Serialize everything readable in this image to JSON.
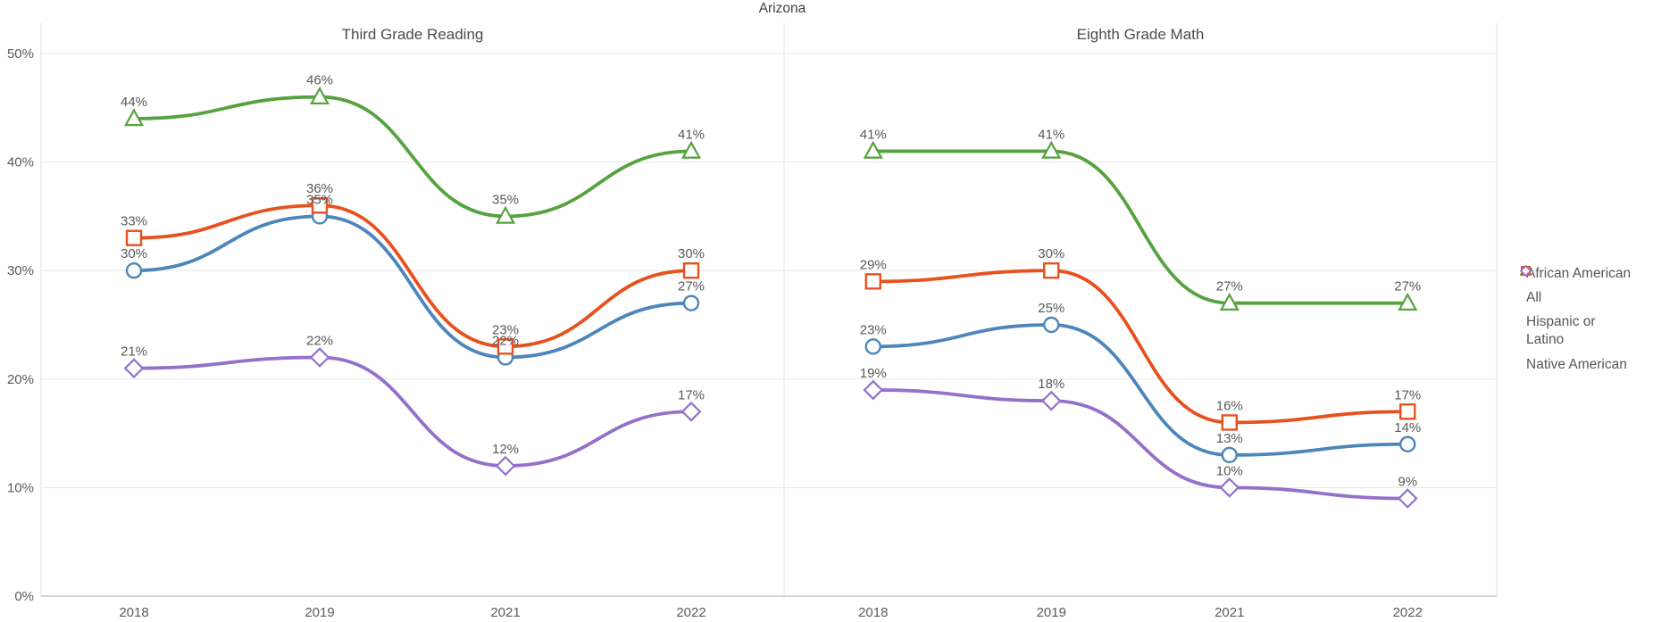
{
  "chart_data": {
    "type": "line",
    "title": "Arizona",
    "ylim": [
      0,
      50
    ],
    "yticks": [
      "0%",
      "10%",
      "20%",
      "30%",
      "40%",
      "50%"
    ],
    "grid": true,
    "legend_position": "right",
    "colors": {
      "african_american": "#4d86bb",
      "all": "#56a240",
      "hispanic_or_latino": "#e7511e",
      "native_american": "#9470ca",
      "gridline": "#e7e7e7",
      "axis_line": "#c6c6c6",
      "text": "#595959"
    },
    "panels": [
      {
        "title": "Third Grade Reading",
        "categories": [
          "2018",
          "2019",
          "2021",
          "2022"
        ],
        "series": [
          {
            "name": "African American",
            "marker": "circle",
            "color": "#4d86bb",
            "values": [
              30,
              35,
              22,
              27
            ]
          },
          {
            "name": "All",
            "marker": "triangle",
            "color": "#56a240",
            "values": [
              44,
              46,
              35,
              41
            ]
          },
          {
            "name": "Hispanic or Latino",
            "marker": "square",
            "color": "#e7511e",
            "values": [
              33,
              36,
              23,
              30
            ]
          },
          {
            "name": "Native American",
            "marker": "diamond",
            "color": "#9470ca",
            "values": [
              21,
              22,
              12,
              17
            ]
          }
        ]
      },
      {
        "title": "Eighth Grade Math",
        "categories": [
          "2018",
          "2019",
          "2021",
          "2022"
        ],
        "series": [
          {
            "name": "African American",
            "marker": "circle",
            "color": "#4d86bb",
            "values": [
              23,
              25,
              13,
              14
            ]
          },
          {
            "name": "All",
            "marker": "triangle",
            "color": "#56a240",
            "values": [
              41,
              41,
              27,
              27
            ]
          },
          {
            "name": "Hispanic or Latino",
            "marker": "square",
            "color": "#e7511e",
            "values": [
              29,
              30,
              16,
              17
            ]
          },
          {
            "name": "Native American",
            "marker": "diamond",
            "color": "#9470ca",
            "values": [
              19,
              18,
              10,
              9
            ]
          }
        ]
      }
    ],
    "legend": [
      {
        "label": "African American",
        "marker": "circle",
        "color": "#4d86bb"
      },
      {
        "label": "All",
        "marker": "triangle",
        "color": "#56a240"
      },
      {
        "label": "Hispanic or Latino",
        "marker": "square",
        "color": "#e7511e"
      },
      {
        "label": "Native American",
        "marker": "diamond",
        "color": "#9470ca"
      }
    ]
  }
}
